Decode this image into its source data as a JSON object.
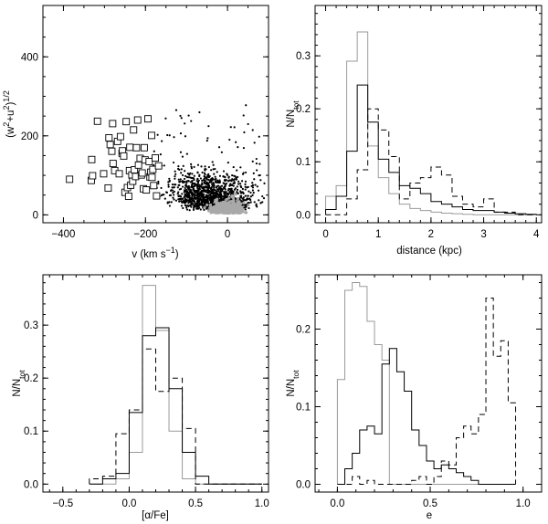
{
  "chart_data": [
    {
      "id": "p1",
      "type": "scatter",
      "xlabel": "v (km s⁻¹)",
      "ylabel": "(w²+u²)¹ᐟ²",
      "xlim": [
        -450,
        100
      ],
      "ylim": [
        -20,
        530
      ],
      "xticks": [
        -400,
        -200,
        0
      ],
      "yticks": [
        0,
        200,
        400
      ],
      "series": [
        {
          "marker": "open-square",
          "points": [
            [
              -385,
              90
            ],
            [
              -332,
              87
            ],
            [
              -329,
              99
            ],
            [
              -331,
              140
            ],
            [
              -317,
              237
            ],
            [
              -302,
              104
            ],
            [
              -291,
              68
            ],
            [
              -289,
              195
            ],
            [
              -286,
              178
            ],
            [
              -282,
              161
            ],
            [
              -280,
              231
            ],
            [
              -279,
              130
            ],
            [
              -275,
              112
            ],
            [
              -268,
              186
            ],
            [
              -264,
              104
            ],
            [
              -261,
              198
            ],
            [
              -257,
              156
            ],
            [
              -256,
              162
            ],
            [
              -253,
              149
            ],
            [
              -250,
              57
            ],
            [
              -247,
              236
            ],
            [
              -244,
              69
            ],
            [
              -241,
              47
            ],
            [
              -239,
              112
            ],
            [
              -238,
              171
            ],
            [
              -236,
              75
            ],
            [
              -233,
              101
            ],
            [
              -231,
              85
            ],
            [
              -229,
              215
            ],
            [
              -227,
              114
            ],
            [
              -224,
              97
            ],
            [
              -222,
              170
            ],
            [
              -219,
              240
            ],
            [
              -217,
              126
            ],
            [
              -213,
              143
            ],
            [
              -210,
              101
            ],
            [
              -208,
              106
            ],
            [
              -205,
              66
            ],
            [
              -203,
              170
            ],
            [
              -201,
              139
            ],
            [
              -198,
              63
            ],
            [
              -194,
              243
            ],
            [
              -191,
              135
            ],
            [
              -189,
              96
            ],
            [
              -187,
              108
            ],
            [
              -185,
              201
            ],
            [
              -184,
              95
            ],
            [
              -182,
              115
            ],
            [
              -180,
              74
            ],
            [
              -176,
              144
            ],
            [
              -173,
              48
            ],
            [
              -168,
              124
            ]
          ]
        },
        {
          "marker": "filled-dot",
          "description": "dense cloud of thin-disc stars",
          "points": "procedural"
        },
        {
          "marker": "grey-fill",
          "description": "dense grey core",
          "points": "procedural"
        }
      ]
    },
    {
      "id": "p2",
      "type": "line",
      "xlabel": "distance (kpc)",
      "ylabel": "N/Nₜₒₜ",
      "xlim": [
        -0.2,
        4.1
      ],
      "ylim": [
        -0.015,
        0.395
      ],
      "xticks": [
        0,
        1,
        2,
        3,
        4
      ],
      "yticks": [
        0.0,
        0.1,
        0.2,
        0.3
      ],
      "bin_edges": [
        0.0,
        0.2,
        0.4,
        0.6,
        0.8,
        1.0,
        1.2,
        1.4,
        1.6,
        1.8,
        2.0,
        2.2,
        2.4,
        2.6,
        2.8,
        3.0,
        3.2,
        3.4,
        3.6,
        3.8,
        4.0
      ],
      "series": [
        {
          "style": "grey",
          "values": [
            0.035,
            0.055,
            0.29,
            0.345,
            0.13,
            0.07,
            0.04,
            0.02,
            0.012,
            0.008,
            0.005,
            0.003,
            0.002,
            0.001,
            0.0,
            0.0,
            0.0,
            0.0,
            0.0,
            0.0
          ]
        },
        {
          "style": "solid",
          "values": [
            0.01,
            0.035,
            0.12,
            0.245,
            0.175,
            0.105,
            0.08,
            0.055,
            0.05,
            0.04,
            0.025,
            0.02,
            0.015,
            0.01,
            0.008,
            0.008,
            0.005,
            0.003,
            0.002,
            0.001
          ]
        },
        {
          "style": "dashed",
          "values": [
            0.0,
            0.0,
            0.03,
            0.085,
            0.2,
            0.16,
            0.11,
            0.03,
            0.06,
            0.07,
            0.09,
            0.075,
            0.035,
            0.02,
            0.015,
            0.03,
            0.005,
            0.005,
            0.0,
            0.0
          ]
        }
      ]
    },
    {
      "id": "p3",
      "type": "line",
      "xlabel": "[α/Fe]",
      "ylabel": "N/Nₜₒₜ",
      "xlim": [
        -0.65,
        1.05
      ],
      "ylim": [
        -0.015,
        0.395
      ],
      "xticks": [
        -0.5,
        0.0,
        0.5,
        1.0
      ],
      "yticks": [
        0.0,
        0.1,
        0.2,
        0.3
      ],
      "bin_edges": [
        -0.3,
        -0.2,
        -0.1,
        0.0,
        0.1,
        0.2,
        0.3,
        0.4,
        0.5,
        0.6,
        0.7,
        0.8,
        0.9,
        1.0
      ],
      "series": [
        {
          "style": "grey",
          "values": [
            0.0,
            0.0,
            0.01,
            0.06,
            0.375,
            0.29,
            0.1,
            0.01,
            0.0,
            0.0,
            0.0,
            0.0,
            0.0
          ]
        },
        {
          "style": "solid",
          "values": [
            0.0,
            0.01,
            0.02,
            0.135,
            0.28,
            0.295,
            0.18,
            0.06,
            0.015,
            0.0,
            0.0,
            0.0,
            0.0
          ]
        },
        {
          "style": "dashed",
          "values": [
            0.01,
            0.015,
            0.095,
            0.14,
            0.255,
            0.175,
            0.2,
            0.105,
            0.0,
            0.0,
            0.0,
            0.0,
            0.0
          ]
        }
      ]
    },
    {
      "id": "p4",
      "type": "line",
      "xlabel": "e",
      "ylabel": "N/Nₜₒₜ",
      "xlim": [
        -0.12,
        1.1
      ],
      "ylim": [
        -0.01,
        0.27
      ],
      "xticks": [
        0.0,
        0.5,
        1.0
      ],
      "yticks": [
        0.0,
        0.1,
        0.2
      ],
      "bin_edges": [
        0.0,
        0.04,
        0.08,
        0.12,
        0.16,
        0.2,
        0.24,
        0.28,
        0.32,
        0.36,
        0.4,
        0.44,
        0.48,
        0.52,
        0.56,
        0.6,
        0.64,
        0.68,
        0.72,
        0.76,
        0.8,
        0.84,
        0.88,
        0.92,
        0.96
      ],
      "series": [
        {
          "style": "grey",
          "values": [
            0.135,
            0.25,
            0.26,
            0.255,
            0.21,
            0.18,
            0.16,
            0.0,
            0.0,
            0.0,
            0.0,
            0.0,
            0.0,
            0.0,
            0.0,
            0.0,
            0.0,
            0.0,
            0.0,
            0.0,
            0.0,
            0.0,
            0.0,
            0.0
          ]
        },
        {
          "style": "solid",
          "values": [
            0.0,
            0.02,
            0.04,
            0.07,
            0.075,
            0.065,
            0.155,
            0.175,
            0.145,
            0.12,
            0.07,
            0.05,
            0.03,
            0.02,
            0.025,
            0.02,
            0.015,
            0.01,
            0.005,
            0.0,
            0.0,
            0.0,
            0.0,
            0.0
          ]
        },
        {
          "style": "dashed",
          "values": [
            0.0,
            0.0,
            0.01,
            0.0,
            0.005,
            0.0,
            0.0,
            0.0,
            0.0,
            0.0,
            0.005,
            0.01,
            0.0,
            0.01,
            0.03,
            0.025,
            0.06,
            0.075,
            0.065,
            0.09,
            0.24,
            0.165,
            0.185,
            0.105
          ]
        }
      ]
    }
  ]
}
